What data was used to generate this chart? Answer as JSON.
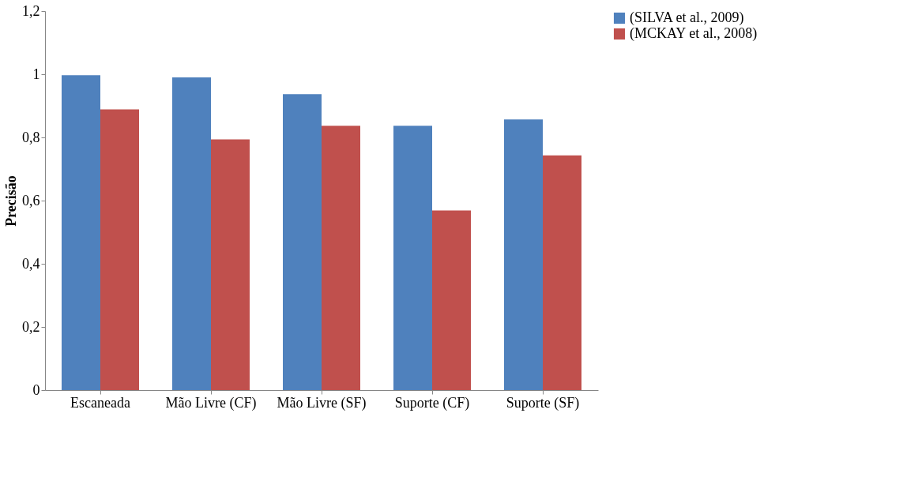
{
  "chart_data": {
    "type": "bar",
    "ylabel": "Precisão",
    "categories": [
      "Escaneada",
      "Mão Livre (CF)",
      "Mão Livre (SF)",
      "Suporte (CF)",
      "Suporte (SF)"
    ],
    "series": [
      {
        "name": "(SILVA et al., 2009)",
        "color": "#4f81bd",
        "values": [
          0.997,
          0.99,
          0.937,
          0.837,
          0.857
        ]
      },
      {
        "name": "(MCKAY et al., 2008)",
        "color": "#c0504d",
        "values": [
          0.889,
          0.794,
          0.837,
          0.569,
          0.743
        ]
      }
    ],
    "ylim": [
      0,
      1.2
    ],
    "yticks": [
      {
        "value": 0,
        "label": "0"
      },
      {
        "value": 0.2,
        "label": "0,2"
      },
      {
        "value": 0.4,
        "label": "0,4"
      },
      {
        "value": 0.6,
        "label": "0,6"
      },
      {
        "value": 0.8,
        "label": "0,8"
      },
      {
        "value": 1,
        "label": "1"
      },
      {
        "value": 1.2,
        "label": "1,2"
      }
    ],
    "grid": false,
    "legend": "right"
  }
}
